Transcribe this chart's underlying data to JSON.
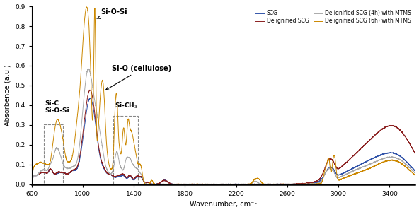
{
  "xlabel": "Wavenumber, cm⁻¹",
  "ylabel": "Absorbence (a.u.)",
  "xlim": [
    600,
    3600
  ],
  "ylim": [
    0,
    0.9
  ],
  "yticks": [
    0.0,
    0.1,
    0.2,
    0.3,
    0.4,
    0.5,
    0.6,
    0.7,
    0.8,
    0.9
  ],
  "xticks": [
    600,
    1000,
    1400,
    1800,
    2200,
    2600,
    3000,
    3400
  ],
  "colors": {
    "SCG": "#3355aa",
    "DSCG": "#8b2020",
    "MTMS4": "#aaaaaa",
    "MTMS6": "#cc8800"
  },
  "legend_labels": [
    "SCG",
    "Delignified SCG",
    "Delignified SCG (4h) with MTMS",
    "Delignified SCG (6h) with MTMS"
  ]
}
